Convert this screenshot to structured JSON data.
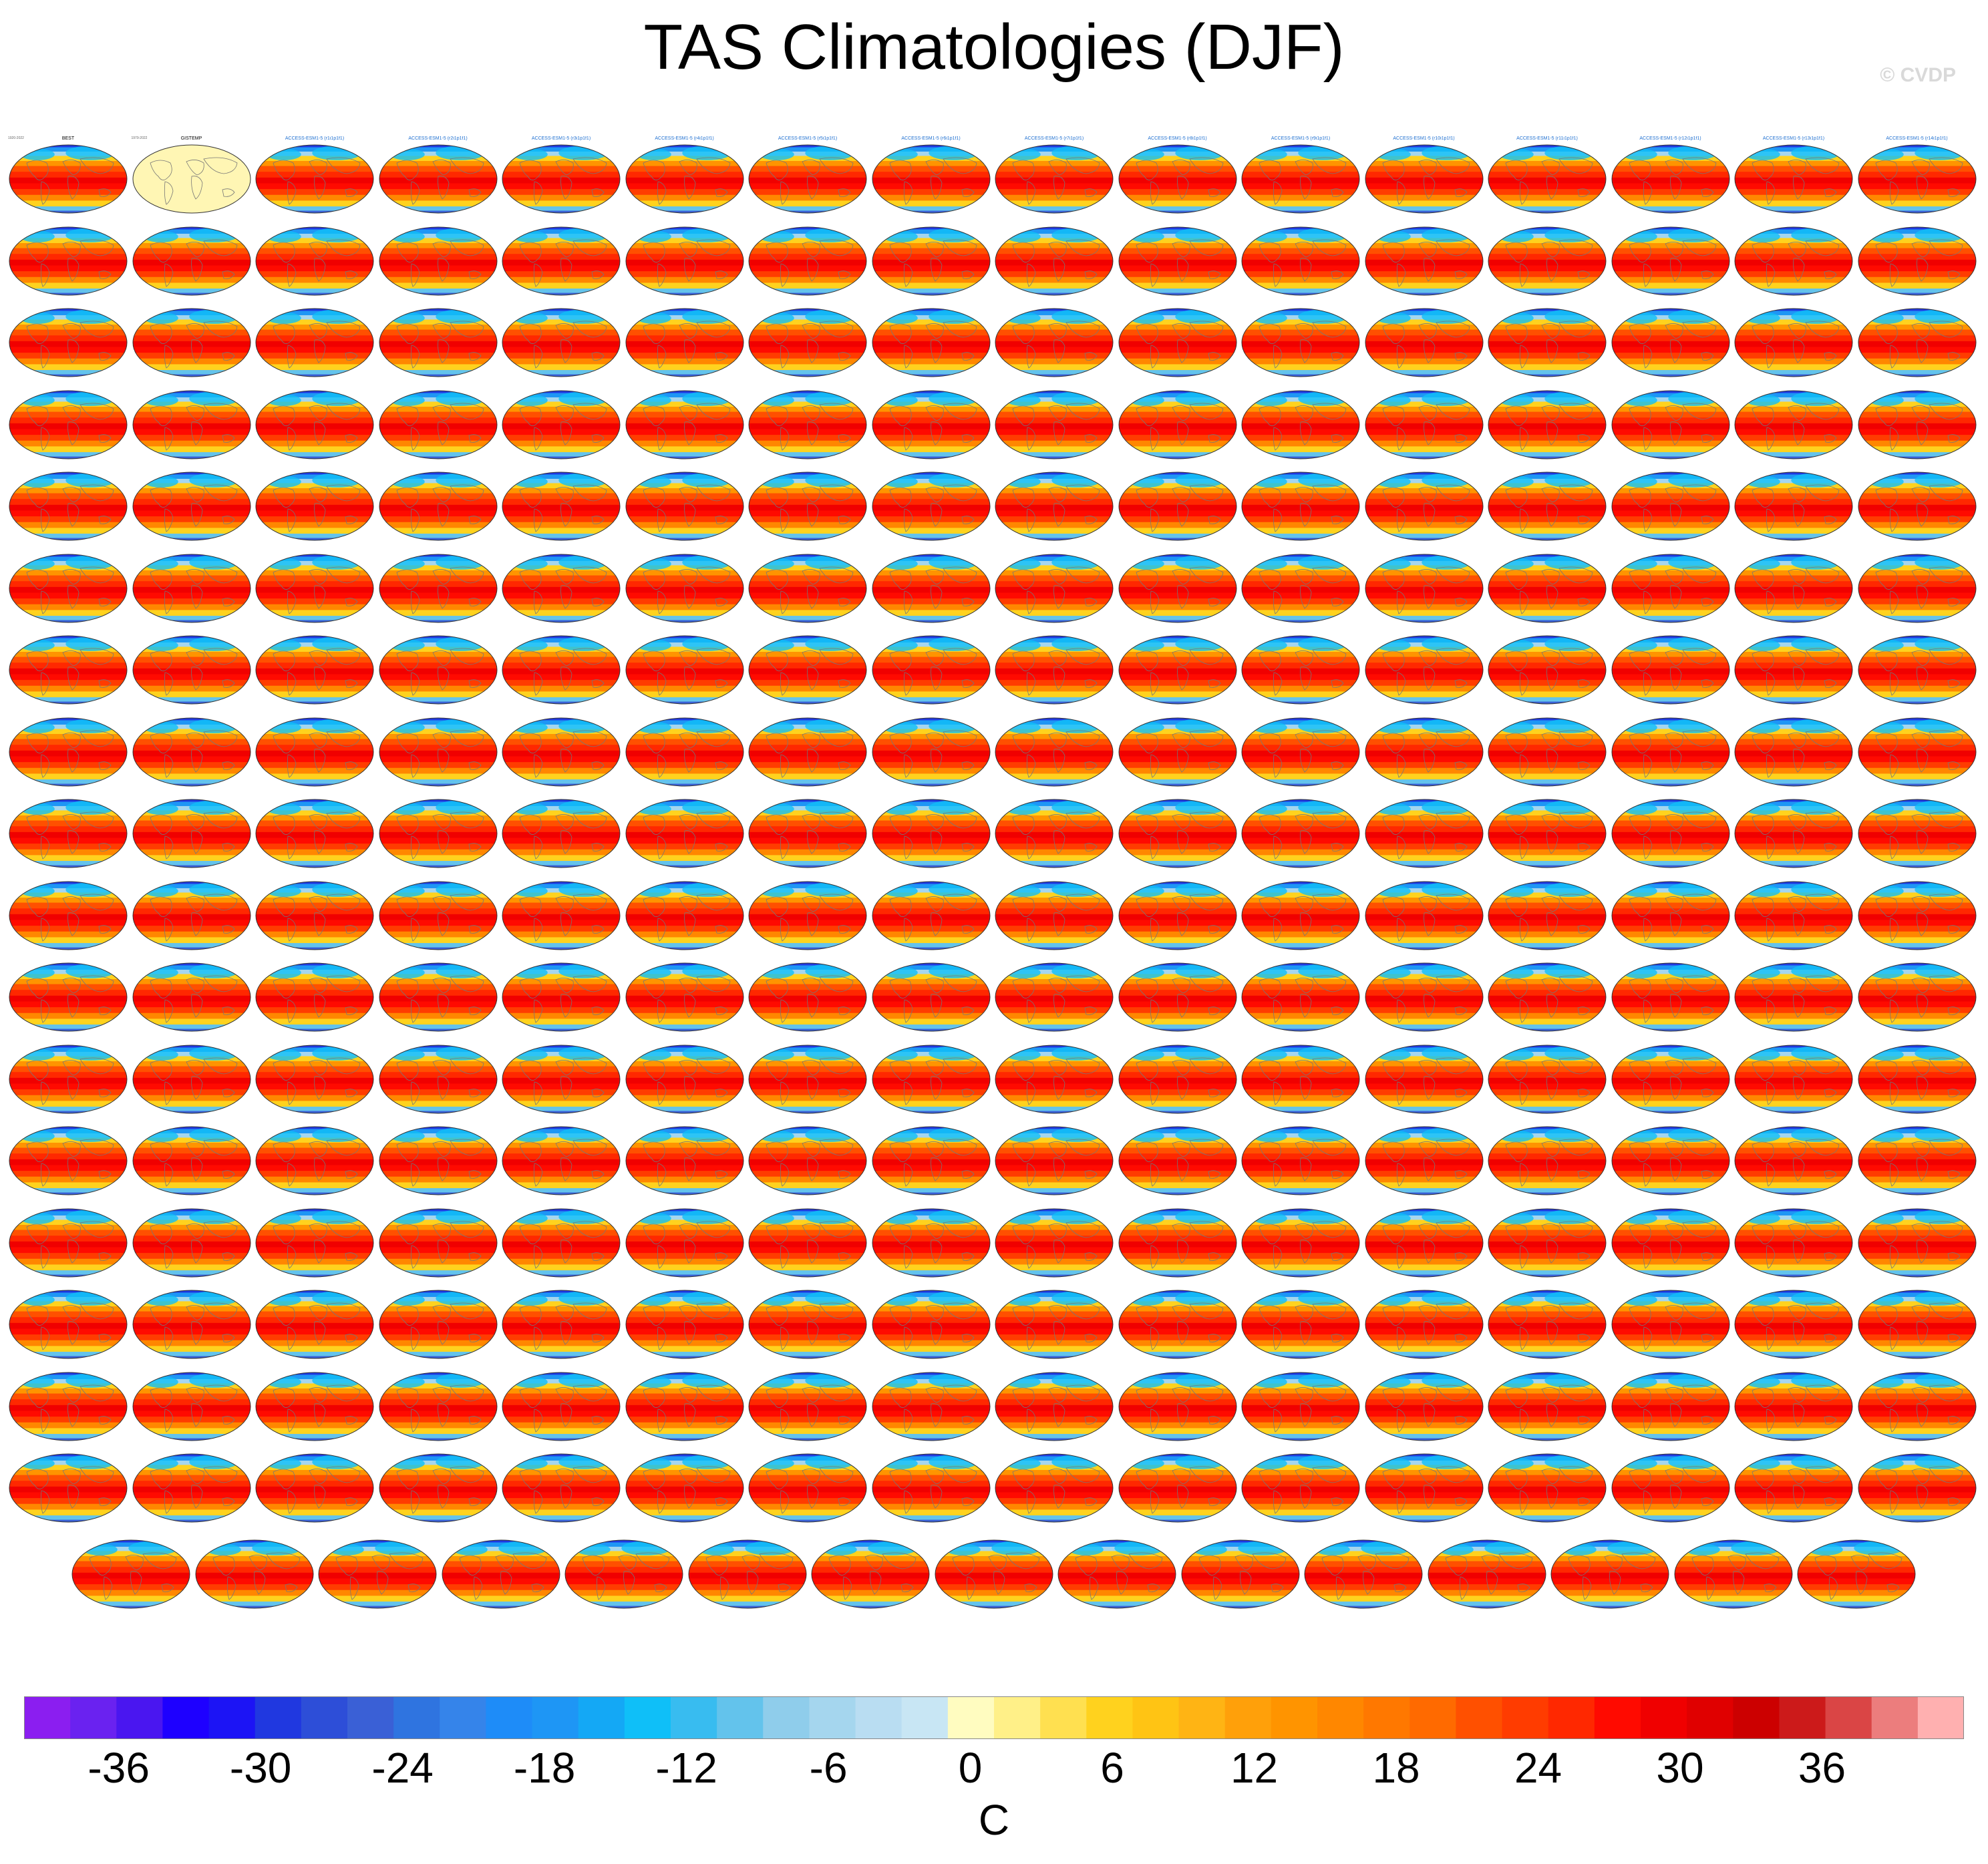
{
  "title": "TAS Climatologies (DJF)",
  "watermark": "© CVDP",
  "chart_data": {
    "type": "heatmap",
    "variable": "TAS",
    "season": "DJF",
    "layout": {
      "rows_full": 17,
      "cols": 16,
      "last_row_count": 15
    },
    "panels": [
      {
        "title": "BEST",
        "years": "1920-2022",
        "kind": "obs"
      },
      {
        "title": "GISTEMP",
        "years": "1979-2022",
        "kind": "obs-land"
      },
      {
        "title": "ACCESS-ESM1-5 (r1i1p1f1)",
        "kind": "model"
      },
      {
        "title": "ACCESS-ESM1-5 (r2i1p1f1)",
        "kind": "model"
      },
      {
        "title": "ACCESS-ESM1-5 (r3i1p1f1)",
        "kind": "model"
      },
      {
        "title": "ACCESS-ESM1-5 (r4i1p1f1)",
        "kind": "model"
      },
      {
        "title": "ACCESS-ESM1-5 (r5i1p1f1)",
        "kind": "model"
      },
      {
        "title": "ACCESS-ESM1-5 (r6i1p1f1)",
        "kind": "model"
      },
      {
        "title": "ACCESS-ESM1-5 (r7i1p1f1)",
        "kind": "model"
      },
      {
        "title": "ACCESS-ESM1-5 (r8i1p1f1)",
        "kind": "model"
      },
      {
        "title": "ACCESS-ESM1-5 (r9i1p1f1)",
        "kind": "model"
      },
      {
        "title": "ACCESS-ESM1-5 (r10i1p1f1)",
        "kind": "model"
      },
      {
        "title": "ACCESS-ESM1-5 (r11i1p1f1)",
        "kind": "model"
      },
      {
        "title": "ACCESS-ESM1-5 (r12i1p1f1)",
        "kind": "model"
      },
      {
        "title": "ACCESS-ESM1-5 (r13i1p1f1)",
        "kind": "model"
      },
      {
        "title": "ACCESS-ESM1-5 (r14i1p1f1)",
        "kind": "model"
      }
    ],
    "colorbar": {
      "unit": "C",
      "min": -40,
      "max": 42,
      "step": 2,
      "tick_labels": [
        "-36",
        "-30",
        "-24",
        "-18",
        "-12",
        "-6",
        "0",
        "6",
        "12",
        "18",
        "24",
        "30",
        "36"
      ],
      "tick_values": [
        -36,
        -30,
        -24,
        -18,
        -12,
        -6,
        0,
        6,
        12,
        18,
        24,
        30,
        36
      ],
      "colors": [
        "#8b1ef0",
        "#6a22f0",
        "#4a16f0",
        "#1e00ff",
        "#1c14f5",
        "#2038e0",
        "#2d4ed8",
        "#3a60d6",
        "#2f74e0",
        "#3584ea",
        "#1e8cf8",
        "#1e96f5",
        "#14a8f5",
        "#0fbff8",
        "#38bcf0",
        "#63c3ec",
        "#8fcdeb",
        "#a5d6ee",
        "#b9ddf2",
        "#c8e6f4",
        "#fffcc0",
        "#fff088",
        "#ffe050",
        "#ffd21e",
        "#ffc414",
        "#ffb414",
        "#ffa00a",
        "#ff9400",
        "#ff8700",
        "#ff7800",
        "#ff6a00",
        "#ff5000",
        "#ff3c00",
        "#ff2800",
        "#ff0a00",
        "#f00000",
        "#e00000",
        "#cc0000",
        "#cc1a1a",
        "#da4545",
        "#ec7d7d",
        "#ffb0b0"
      ]
    }
  }
}
